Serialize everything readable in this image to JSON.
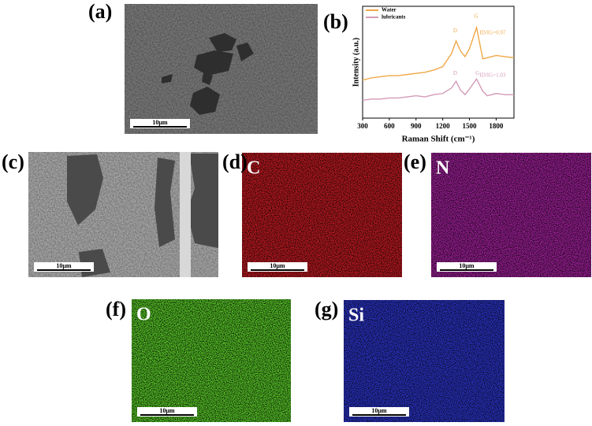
{
  "panels": [
    {
      "label": "(a)",
      "scale_bar": "10μm"
    },
    {
      "label": "(b)"
    },
    {
      "label": "(c)",
      "scale_bar": "10μm"
    },
    {
      "label": "(d)",
      "element": "C",
      "scale_bar": "10μm"
    },
    {
      "label": "(e)",
      "element": "N",
      "scale_bar": "10μm"
    },
    {
      "label": "(f)",
      "element": "O",
      "scale_bar": "10μm"
    },
    {
      "label": "(g)",
      "element": "Si",
      "scale_bar": "10μm"
    }
  ],
  "chart_data": {
    "type": "line",
    "xlabel": "Raman Shift (cm⁻¹)",
    "ylabel": "Intensity (a.u.)",
    "x": [
      300,
      400,
      500,
      600,
      700,
      800,
      900,
      1000,
      1100,
      1200,
      1300,
      1350,
      1400,
      1450,
      1500,
      1580,
      1650,
      1700,
      1800,
      1900,
      2000
    ],
    "series": [
      {
        "name": "Water",
        "color": "#f0a848",
        "values": [
          34,
          36,
          37,
          38,
          38,
          39,
          40,
          41,
          43,
          46,
          58,
          69,
          60,
          55,
          62,
          81,
          53,
          54,
          56,
          55,
          54
        ]
      },
      {
        "name": "lubricants",
        "color": "#d49ab8",
        "values": [
          16,
          17,
          17,
          18,
          18,
          19,
          20,
          19,
          21,
          22,
          27,
          33,
          25,
          21,
          26,
          35,
          24,
          20,
          22,
          21,
          21
        ]
      }
    ],
    "annotations": [
      {
        "text": "D",
        "x": 1340,
        "y": 78,
        "color": "#f0a848"
      },
      {
        "text": "G",
        "x": 1575,
        "y": 91,
        "color": "#f0a848"
      },
      {
        "text": "ID/IG=0.97",
        "x": 1760,
        "y": 76,
        "color": "#f0a848"
      },
      {
        "text": "D",
        "x": 1340,
        "y": 40,
        "color": "#d49ab8"
      },
      {
        "text": "G",
        "x": 1590,
        "y": 40,
        "color": "#d49ab8"
      },
      {
        "text": "ID/IG=1.03",
        "x": 1760,
        "y": 38,
        "color": "#d49ab8"
      }
    ],
    "xlim": [
      300,
      2000
    ],
    "ylim": [
      0,
      100
    ],
    "xticks": [
      300,
      600,
      900,
      1200,
      1500,
      1800
    ],
    "legend": "upper-left"
  }
}
